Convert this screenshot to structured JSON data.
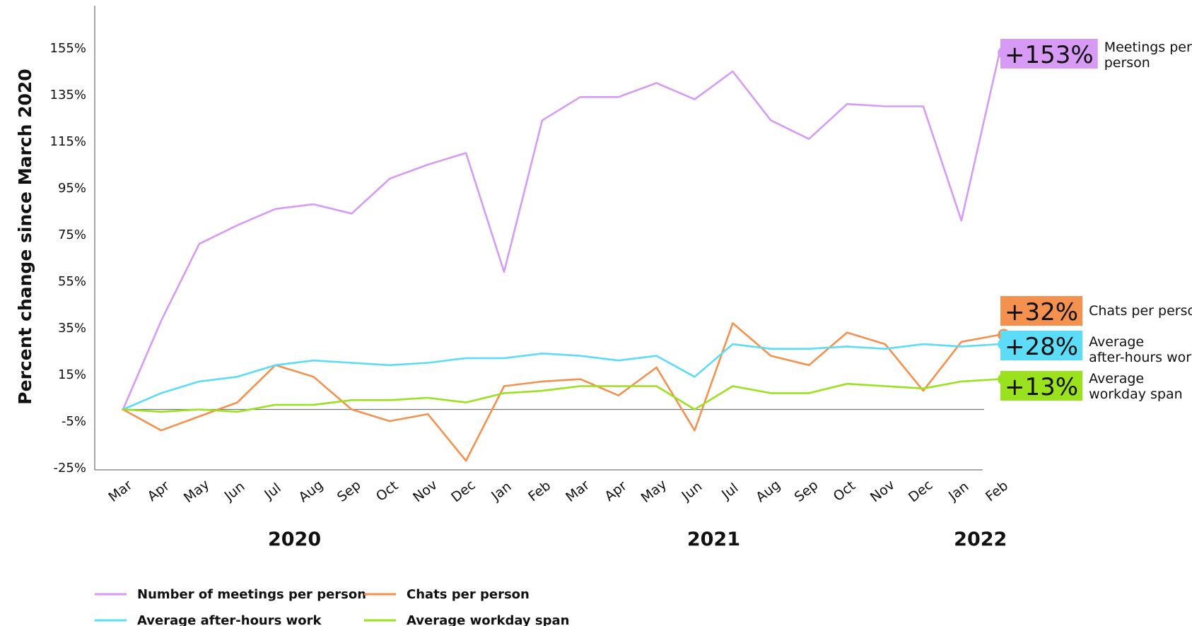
{
  "chart_data": {
    "type": "line",
    "ylabel": "Percent change since March 2020",
    "xlabel": "",
    "ylim": [
      -25,
      165
    ],
    "y_ticks": [
      "155%",
      "135%",
      "115%",
      "95%",
      "75%",
      "55%",
      "35%",
      "15%",
      "-5%",
      "-25%"
    ],
    "y_tick_values": [
      155,
      135,
      115,
      95,
      75,
      55,
      35,
      15,
      -5,
      -25
    ],
    "categories": [
      "Mar",
      "Apr",
      "May",
      "Jun",
      "Jul",
      "Aug",
      "Sep",
      "Oct",
      "Nov",
      "Dec",
      "Jan",
      "Feb",
      "Mar",
      "Apr",
      "May",
      "Jun",
      "Jul",
      "Aug",
      "Sep",
      "Oct",
      "Nov",
      "Dec",
      "Jan",
      "Feb"
    ],
    "years": [
      {
        "label": "2020",
        "center_index": 4.5
      },
      {
        "label": "2021",
        "center_index": 15.5
      },
      {
        "label": "2022",
        "center_index": 22.5
      }
    ],
    "grid": false,
    "legend_position": "bottom-left",
    "series": [
      {
        "name": "Number of meetings per person",
        "color": "#D79BF5",
        "values": [
          0,
          38,
          71,
          79,
          86,
          88,
          84,
          99,
          105,
          110,
          59,
          124,
          134,
          134,
          140,
          133,
          145,
          124,
          116,
          131,
          130,
          130,
          81,
          153
        ],
        "end_badge": "+153%",
        "end_label": [
          "Meetings per",
          "person"
        ]
      },
      {
        "name": "Chats per person",
        "color": "#F4914E",
        "values": [
          0,
          -9,
          -3,
          3,
          19,
          14,
          0,
          -5,
          -2,
          -22,
          10,
          12,
          13,
          6,
          18,
          -9,
          37,
          23,
          19,
          33,
          28,
          8,
          29,
          32
        ],
        "end_badge": "+32%",
        "end_label": [
          "Chats per person"
        ]
      },
      {
        "name": "Average after-hours work",
        "color": "#5CDCF7",
        "values": [
          0,
          7,
          12,
          14,
          19,
          21,
          20,
          19,
          20,
          22,
          22,
          24,
          23,
          21,
          23,
          14,
          28,
          26,
          26,
          27,
          26,
          28,
          27,
          28
        ],
        "end_badge": "+28%",
        "end_label": [
          "Average",
          "after-hours work"
        ]
      },
      {
        "name": "Average workday span",
        "color": "#9BE21E",
        "values": [
          0,
          -1,
          0,
          -1,
          2,
          2,
          4,
          4,
          5,
          3,
          7,
          8,
          10,
          10,
          10,
          0,
          10,
          7,
          7,
          11,
          10,
          9,
          12,
          13
        ],
        "end_badge": "+13%",
        "end_label": [
          "Average",
          "workday span"
        ]
      }
    ],
    "legend": [
      {
        "label": "Number of meetings per person",
        "color": "#D79BF5"
      },
      {
        "label": "Chats per person",
        "color": "#F4914E"
      },
      {
        "label": "Average after-hours work",
        "color": "#5CDCF7"
      },
      {
        "label": "Average workday span",
        "color": "#9BE21E"
      }
    ]
  }
}
